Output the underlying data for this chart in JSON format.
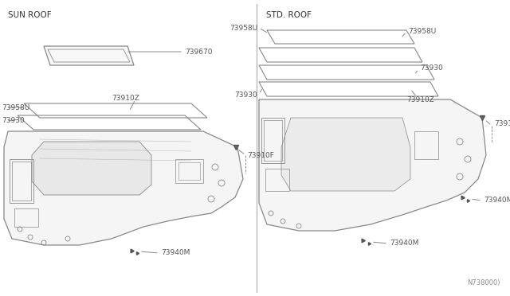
{
  "bg_color": "#ffffff",
  "line_color": "#888888",
  "text_color": "#555555",
  "sun_roof_label": "SUN ROOF",
  "std_roof_label": "STD. ROOF",
  "diagram_code": "N738000)"
}
